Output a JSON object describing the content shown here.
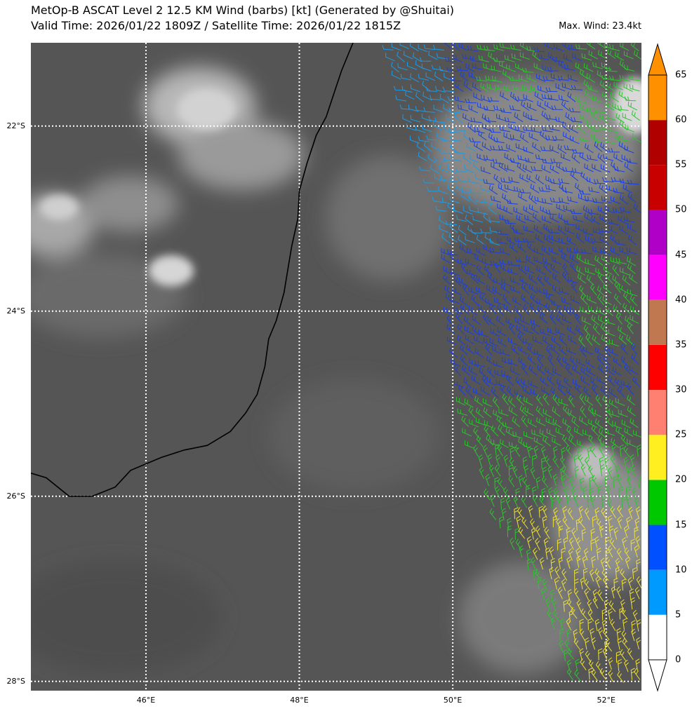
{
  "title_line1": "MetOp-B ASCAT Level 2 12.5 KM Wind (barbs) [kt] (Generated by @Shuitai)",
  "title_line2": "Valid Time: 2026/01/22 1809Z / Satellite Time: 2026/01/22 1815Z",
  "max_wind": "Max. Wind: 23.4kt",
  "map": {
    "lon_min": 44.5,
    "lon_max": 52.46,
    "lat_min": -28.1,
    "lat_max": -21.1,
    "lat_labels": [
      {
        "lat": -22,
        "text": "22°S"
      },
      {
        "lat": -24,
        "text": "24°S"
      },
      {
        "lat": -26,
        "text": "26°S"
      },
      {
        "lat": -28,
        "text": "28°S"
      }
    ],
    "lon_labels": [
      {
        "lon": 46,
        "text": "46°E"
      },
      {
        "lon": 48,
        "text": "48°E"
      },
      {
        "lon": 50,
        "text": "50°E"
      },
      {
        "lon": 52,
        "text": "52°E"
      }
    ],
    "coastline": [
      [
        48.7,
        -21.1
      ],
      [
        48.55,
        -21.4
      ],
      [
        48.43,
        -21.7
      ],
      [
        48.35,
        -21.9
      ],
      [
        48.22,
        -22.1
      ],
      [
        48.1,
        -22.4
      ],
      [
        48.0,
        -22.7
      ],
      [
        47.98,
        -23.0
      ],
      [
        47.9,
        -23.3
      ],
      [
        47.85,
        -23.55
      ],
      [
        47.8,
        -23.8
      ],
      [
        47.7,
        -24.1
      ],
      [
        47.6,
        -24.3
      ],
      [
        47.55,
        -24.6
      ],
      [
        47.45,
        -24.9
      ],
      [
        47.3,
        -25.1
      ],
      [
        47.1,
        -25.3
      ],
      [
        46.8,
        -25.45
      ],
      [
        46.5,
        -25.5
      ],
      [
        46.2,
        -25.58
      ],
      [
        45.8,
        -25.72
      ],
      [
        45.6,
        -25.9
      ],
      [
        45.3,
        -26.0
      ],
      [
        45.0,
        -26.0
      ],
      [
        44.7,
        -25.8
      ],
      [
        44.5,
        -25.75
      ]
    ],
    "barb_region_west_edge": [
      [
        49.2,
        -21.1
      ],
      [
        49.5,
        -22.0
      ],
      [
        49.95,
        -23.0
      ],
      [
        50.0,
        -24.0
      ],
      [
        50.2,
        -25.2
      ],
      [
        50.6,
        -26.3
      ],
      [
        51.2,
        -27.1
      ],
      [
        51.6,
        -28.1
      ]
    ]
  },
  "colorbar": {
    "units": "kt",
    "levels": [
      0,
      5,
      10,
      15,
      20,
      25,
      30,
      35,
      40,
      45,
      50,
      55,
      60,
      65
    ],
    "colors": [
      "#ffffff",
      "#009aff",
      "#0050ff",
      "#00c800",
      "#ffee20",
      "#ff8070",
      "#ff0000",
      "#c07850",
      "#ff00ff",
      "#b000c8",
      "#c80000",
      "#b00000",
      "#ff9000"
    ],
    "tick_labels": [
      "0",
      "5",
      "10",
      "15",
      "20",
      "25",
      "30",
      "35",
      "40",
      "45",
      "50",
      "55",
      "60",
      "65"
    ]
  },
  "wind_barbs": {
    "zones": [
      {
        "name": "light-blue-barbs",
        "range_kt": "5-10",
        "color": "#1c9be8",
        "area": "north-west of barb region"
      },
      {
        "name": "blue-barbs",
        "range_kt": "10-15",
        "color": "#1a3fe0",
        "area": "central"
      },
      {
        "name": "green-barbs",
        "range_kt": "15-20",
        "color": "#2bc62b",
        "area": "north-east and south"
      },
      {
        "name": "yellow-barbs",
        "range_kt": "20-25",
        "color": "#f0e030",
        "area": "far south-east"
      }
    ]
  }
}
